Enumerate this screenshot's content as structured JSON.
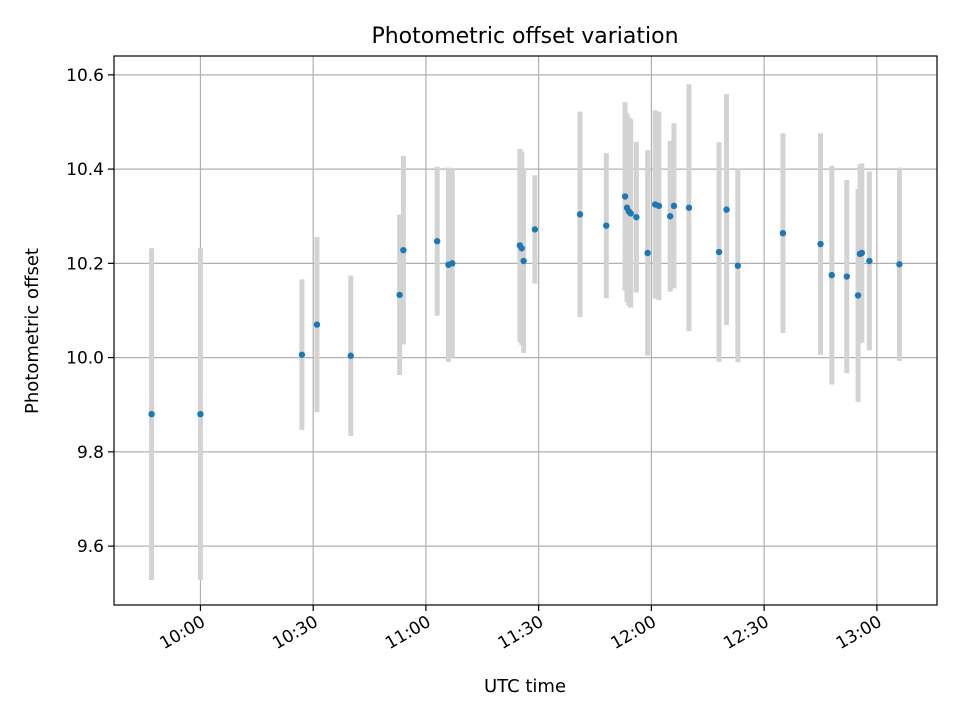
{
  "chart_data": {
    "type": "scatter",
    "title": "Photometric offset variation",
    "xlabel": "UTC time",
    "ylabel": "Photometric offset",
    "x_ticks": [
      "10:00",
      "10:30",
      "11:00",
      "11:30",
      "12:00",
      "12:30",
      "13:00"
    ],
    "y_ticks": [
      "9.6",
      "9.8",
      "10.0",
      "10.2",
      "10.4",
      "10.6"
    ],
    "xlim": [
      "09:37",
      "13:16"
    ],
    "ylim": [
      9.475,
      10.64
    ],
    "grid": true,
    "colors": {
      "point": "#1f77b4",
      "error_bar": "#d3d3d3",
      "grid": "#b0b0b0"
    },
    "series": [
      {
        "points": [
          {
            "t": "09:47",
            "y": 9.88,
            "err": 0.352
          },
          {
            "t": "09:60",
            "y": 9.88,
            "err": 0.352
          },
          {
            "t": "10:27",
            "y": 10.006,
            "err": 0.16
          },
          {
            "t": "10:31",
            "y": 10.07,
            "err": 0.186
          },
          {
            "t": "10:40",
            "y": 10.004,
            "err": 0.17
          },
          {
            "t": "10:53",
            "y": 10.133,
            "err": 0.17
          },
          {
            "t": "10:54",
            "y": 10.228,
            "err": 0.2
          },
          {
            "t": "11:03",
            "y": 10.247,
            "err": 0.158
          },
          {
            "t": "11:06",
            "y": 10.197,
            "err": 0.206
          },
          {
            "t": "11:07",
            "y": 10.2,
            "err": 0.2
          },
          {
            "t": "11:25",
            "y": 10.238,
            "err": 0.205
          },
          {
            "t": "11:25.5",
            "y": 10.232,
            "err": 0.205
          },
          {
            "t": "11:26",
            "y": 10.205,
            "err": 0.195
          },
          {
            "t": "11:29",
            "y": 10.272,
            "err": 0.115
          },
          {
            "t": "11:41",
            "y": 10.304,
            "err": 0.218
          },
          {
            "t": "11:48",
            "y": 10.28,
            "err": 0.154
          },
          {
            "t": "11:53",
            "y": 10.342,
            "err": 0.2
          },
          {
            "t": "11:53.5",
            "y": 10.318,
            "err": 0.2
          },
          {
            "t": "11:54",
            "y": 10.31,
            "err": 0.2
          },
          {
            "t": "11:54.5",
            "y": 10.306,
            "err": 0.2
          },
          {
            "t": "11:56",
            "y": 10.298,
            "err": 0.16
          },
          {
            "t": "11:59",
            "y": 10.222,
            "err": 0.218
          },
          {
            "t": "12:01",
            "y": 10.325,
            "err": 0.2
          },
          {
            "t": "12:02",
            "y": 10.322,
            "err": 0.2
          },
          {
            "t": "12:05",
            "y": 10.3,
            "err": 0.16
          },
          {
            "t": "12:06",
            "y": 10.322,
            "err": 0.175
          },
          {
            "t": "12:10",
            "y": 10.318,
            "err": 0.262
          },
          {
            "t": "12:18",
            "y": 10.224,
            "err": 0.233
          },
          {
            "t": "12:20",
            "y": 10.314,
            "err": 0.245
          },
          {
            "t": "12:23",
            "y": 10.195,
            "err": 0.205
          },
          {
            "t": "12:35",
            "y": 10.264,
            "err": 0.212
          },
          {
            "t": "12:45",
            "y": 10.241,
            "err": 0.235
          },
          {
            "t": "12:48",
            "y": 10.175,
            "err": 0.232
          },
          {
            "t": "12:52",
            "y": 10.172,
            "err": 0.205
          },
          {
            "t": "12:55",
            "y": 10.132,
            "err": 0.226
          },
          {
            "t": "12:55.5",
            "y": 10.22,
            "err": 0.19
          },
          {
            "t": "12:56",
            "y": 10.222,
            "err": 0.19
          },
          {
            "t": "12:58",
            "y": 10.205,
            "err": 0.19
          },
          {
            "t": "13:06",
            "y": 10.198,
            "err": 0.205
          }
        ]
      }
    ]
  }
}
